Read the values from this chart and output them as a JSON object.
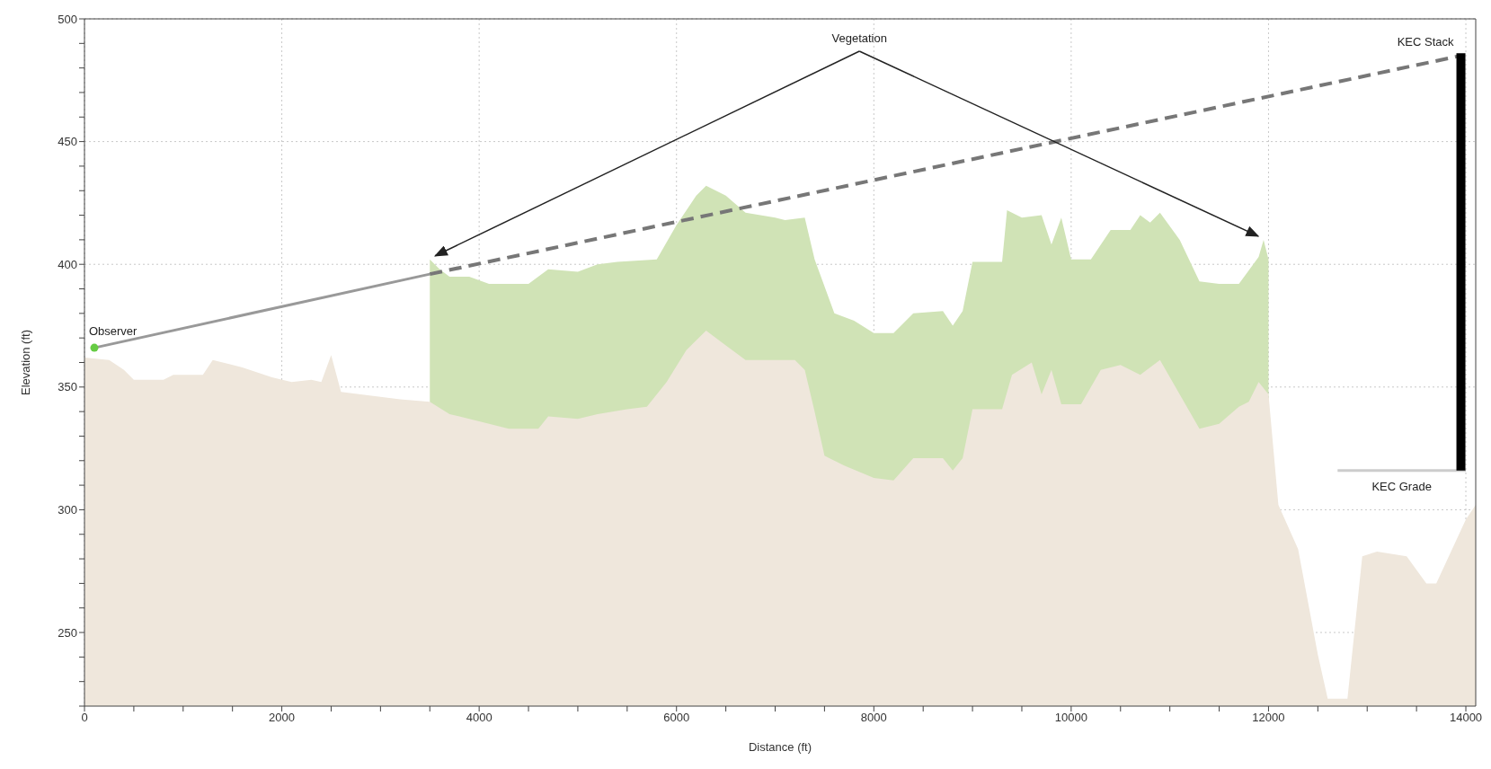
{
  "chart_data": {
    "type": "area",
    "xlabel": "Distance (ft)",
    "ylabel": "Elevation (ft)",
    "xlim": [
      0,
      14100
    ],
    "ylim": [
      220,
      500
    ],
    "xticks": [
      0,
      {
        "value": 500,
        "label": null
      },
      {
        "value": 1000,
        "label": null
      },
      {
        "value": 1500,
        "label": null
      },
      2000,
      {
        "value": 2500,
        "label": null
      },
      {
        "value": 3000,
        "label": null
      },
      {
        "value": 3500,
        "label": null
      },
      4000,
      {
        "value": 4500,
        "label": null
      },
      {
        "value": 5000,
        "label": null
      },
      {
        "value": 5500,
        "label": null
      },
      6000,
      {
        "value": 6500,
        "label": null
      },
      {
        "value": 7000,
        "label": null
      },
      {
        "value": 7500,
        "label": null
      },
      8000,
      {
        "value": 8500,
        "label": null
      },
      {
        "value": 9000,
        "label": null
      },
      {
        "value": 9500,
        "label": null
      },
      10000,
      {
        "value": 10500,
        "label": null
      },
      {
        "value": 11000,
        "label": null
      },
      {
        "value": 11500,
        "label": null
      },
      12000,
      {
        "value": 12500,
        "label": null
      },
      {
        "value": 13000,
        "label": null
      },
      {
        "value": 13500,
        "label": null
      },
      14000
    ],
    "yticks": [
      {
        "value": 220,
        "label": null
      },
      {
        "value": 230,
        "label": null
      },
      {
        "value": 240,
        "label": null
      },
      250,
      {
        "value": 260,
        "label": null
      },
      {
        "value": 270,
        "label": null
      },
      {
        "value": 280,
        "label": null
      },
      {
        "value": 290,
        "label": null
      },
      300,
      {
        "value": 310,
        "label": null
      },
      {
        "value": 320,
        "label": null
      },
      {
        "value": 330,
        "label": null
      },
      {
        "value": 340,
        "label": null
      },
      350,
      {
        "value": 360,
        "label": null
      },
      {
        "value": 370,
        "label": null
      },
      {
        "value": 380,
        "label": null
      },
      {
        "value": 390,
        "label": null
      },
      400,
      {
        "value": 410,
        "label": null
      },
      {
        "value": 420,
        "label": null
      },
      {
        "value": 430,
        "label": null
      },
      {
        "value": 440,
        "label": null
      },
      450,
      {
        "value": 460,
        "label": null
      },
      {
        "value": 470,
        "label": null
      },
      {
        "value": 480,
        "label": null
      },
      {
        "value": 490,
        "label": null
      },
      500
    ],
    "grid": true,
    "series": [
      {
        "color": "#d0e3b6",
        "x": [
          3500,
          3600,
          3700,
          3900,
          4100,
          4500,
          4700,
          5000,
          5200,
          5400,
          5800,
          6000,
          6200,
          6300,
          6500,
          6700,
          7000,
          7100,
          7300,
          7400,
          7600,
          7800,
          8000,
          8200,
          8400,
          8700,
          8800,
          8900,
          9000,
          9300,
          9350,
          9500,
          9700,
          9800,
          9900,
          10000,
          10200,
          10400,
          10600,
          10700,
          10800,
          10900,
          11100,
          11300,
          11500,
          11700,
          11900,
          11950,
          12000
        ],
        "values": [
          402,
          398,
          395,
          395,
          392,
          392,
          398,
          397,
          400,
          401,
          402,
          416,
          428,
          432,
          428,
          421,
          419,
          418,
          419,
          402,
          380,
          377,
          372,
          372,
          380,
          381,
          375,
          381,
          401,
          401,
          422,
          419,
          420,
          408,
          419,
          402,
          402,
          414,
          414,
          420,
          417,
          421,
          410,
          393,
          392,
          392,
          403,
          410,
          402
        ]
      },
      {
        "color": "#efe7dc",
        "x": [
          0,
          250,
          400,
          500,
          800,
          900,
          1200,
          1300,
          1600,
          1900,
          2100,
          2300,
          2400,
          2500,
          2600,
          2800,
          3000,
          3200,
          3500,
          3700,
          4000,
          4300,
          4600,
          4700,
          5000,
          5200,
          5500,
          5700,
          5900,
          6100,
          6300,
          6500,
          6700,
          7000,
          7200,
          7300,
          7400,
          7500,
          7700,
          8000,
          8200,
          8400,
          8700,
          8800,
          8900,
          9000,
          9300,
          9400,
          9600,
          9700,
          9800,
          9900,
          10100,
          10300,
          10500,
          10700,
          10900,
          11100,
          11300,
          11500,
          11700,
          11800,
          11900,
          12000,
          12100,
          12300,
          12500,
          12600,
          12800,
          12950,
          13100,
          13400,
          13600,
          13700,
          14000,
          14100
        ],
        "values": [
          362,
          361,
          357,
          353,
          353,
          355,
          355,
          361,
          358,
          354,
          352,
          353,
          352,
          363,
          348,
          347,
          346,
          345,
          344,
          339,
          336,
          333,
          333,
          338,
          337,
          339,
          341,
          342,
          352,
          365,
          373,
          367,
          361,
          361,
          361,
          357,
          340,
          322,
          318,
          313,
          312,
          321,
          321,
          316,
          321,
          341,
          341,
          355,
          360,
          347,
          357,
          343,
          343,
          357,
          359,
          355,
          361,
          347,
          333,
          335,
          342,
          344,
          352,
          347,
          302,
          284,
          241,
          223,
          223,
          281,
          283,
          281,
          270,
          270,
          296,
          302
        ]
      },
      {
        "type": "line",
        "color": "#999999",
        "line_style": "solid",
        "x": [
          100,
          3500
        ],
        "values": [
          366,
          396
        ]
      },
      {
        "type": "line",
        "color": "#777777",
        "line_style": "dashed",
        "x": [
          3500,
          13950
        ],
        "values": [
          396,
          485
        ]
      },
      {
        "type": "line",
        "name": "KEC Grade",
        "color": "#cccccc",
        "line_style": "solid",
        "x": [
          12700,
          14000
        ],
        "values": [
          316,
          316
        ]
      },
      {
        "type": "line",
        "name": "KEC Stack",
        "color": "#000000",
        "line_style": "solid",
        "x": [
          13950,
          13950
        ],
        "values": [
          316,
          486
        ]
      },
      {
        "type": "scatter",
        "name": "Observer",
        "color": "#66cc44",
        "marker": "circle",
        "x": [
          100
        ],
        "values": [
          366
        ]
      }
    ],
    "annotations": [
      "Vegetation"
    ]
  }
}
